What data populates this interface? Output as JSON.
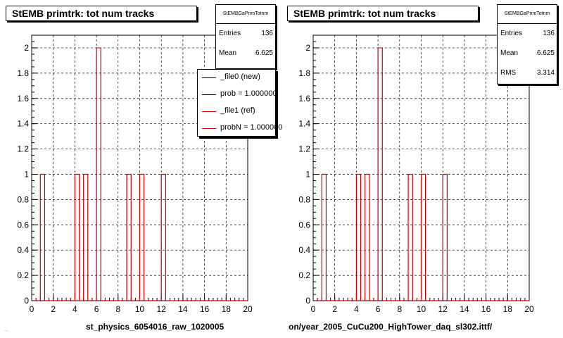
{
  "chart_data": [
    {
      "type": "histogram",
      "title": "StEMB primtrk: tot num tracks",
      "stats": {
        "name": "StEMBGaPrimTotnm",
        "entries_label": "Entries",
        "entries": "136",
        "mean_label": "Mean",
        "mean": "6.625"
      },
      "legend": [
        {
          "label": "_file0 (new)",
          "color": "#000000"
        },
        {
          "label": "prob = 1.000000",
          "color": "#000000"
        },
        {
          "label": "_file1 (ref)",
          "color": "#cc0000"
        },
        {
          "label": "probN = 1.000000",
          "color": "#cc0000"
        }
      ],
      "xlim": [
        0,
        20
      ],
      "ylim": [
        0,
        2.1
      ],
      "xticks": [
        "0",
        "2",
        "4",
        "6",
        "8",
        "10",
        "12",
        "14",
        "16",
        "18",
        "20"
      ],
      "yticks": [
        "0",
        "0.2",
        "0.4",
        "0.6",
        "0.8",
        "1",
        "1.2",
        "1.4",
        "1.6",
        "1.8",
        "2"
      ],
      "grid": true,
      "bin_width": 0.4,
      "bins": [
        {
          "x": 0.8,
          "y": 1
        },
        {
          "x": 4.0,
          "y": 1
        },
        {
          "x": 4.8,
          "y": 1
        },
        {
          "x": 6.0,
          "y": 2
        },
        {
          "x": 8.8,
          "y": 1
        },
        {
          "x": 10.0,
          "y": 1
        },
        {
          "x": 12.0,
          "y": 1
        }
      ],
      "series_color": "#cc0000",
      "xlabel": "st_physics_6054016_raw_1020005"
    },
    {
      "type": "histogram",
      "title": "StEMB primtrk: tot num tracks",
      "stats": {
        "name": "StEMBGaPrimTotnm",
        "entries_label": "Entries",
        "entries": "136",
        "mean_label": "Mean",
        "mean": "6.625",
        "rms_label": "RMS",
        "rms": "3.314"
      },
      "xlim": [
        0,
        20
      ],
      "ylim": [
        0,
        2.1
      ],
      "xticks": [
        "0",
        "2",
        "4",
        "6",
        "8",
        "10",
        "12",
        "14",
        "16",
        "18",
        "20"
      ],
      "yticks": [
        "0",
        "0.2",
        "0.4",
        "0.6",
        "0.8",
        "1",
        "1.2",
        "1.4",
        "1.6",
        "1.8",
        "2"
      ],
      "grid": true,
      "bin_width": 0.4,
      "bins": [
        {
          "x": 0.8,
          "y": 1
        },
        {
          "x": 4.0,
          "y": 1
        },
        {
          "x": 4.8,
          "y": 1
        },
        {
          "x": 6.0,
          "y": 2
        },
        {
          "x": 8.8,
          "y": 1
        },
        {
          "x": 10.0,
          "y": 1
        },
        {
          "x": 12.0,
          "y": 1
        }
      ],
      "series_color": "#cc0000",
      "xlabel": "on/year_2005_CuCu200_HighTower_daq_sl302.ittf/"
    }
  ],
  "footnote": "..."
}
